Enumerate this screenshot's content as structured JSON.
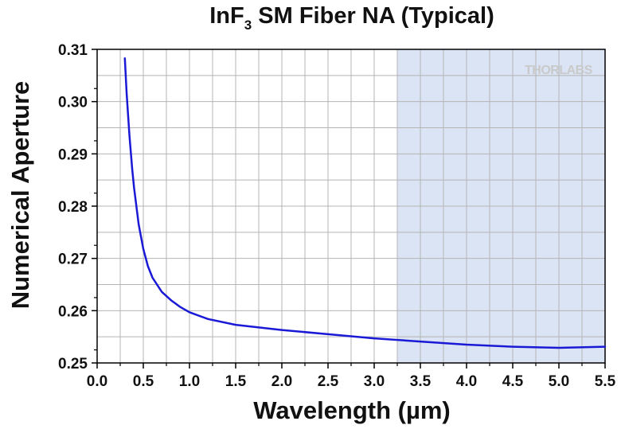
{
  "title": {
    "main": "InF",
    "sub": "3",
    "rest": " SM Fiber NA (Typical)"
  },
  "watermark": "THORLABS",
  "chart_data": {
    "type": "line",
    "xlabel": "Wavelength (µm)",
    "ylabel": "Numerical Aperture",
    "xlim": [
      0.0,
      5.5
    ],
    "ylim": [
      0.25,
      0.31
    ],
    "xticks": [
      "0.0",
      "0.5",
      "1.0",
      "1.5",
      "2.0",
      "2.5",
      "3.0",
      "3.5",
      "4.0",
      "4.5",
      "5.0",
      "5.5"
    ],
    "yticks": [
      "0.25",
      "0.26",
      "0.27",
      "0.28",
      "0.29",
      "0.30",
      "0.31"
    ],
    "grid": true,
    "highlight_region": {
      "x_start": 3.25,
      "x_end": 5.5,
      "color": "#dbe4f4"
    },
    "series": [
      {
        "color": "#1a1ad6",
        "x": [
          0.3,
          0.32,
          0.35,
          0.38,
          0.4,
          0.45,
          0.5,
          0.55,
          0.6,
          0.7,
          0.8,
          0.9,
          1.0,
          1.2,
          1.5,
          2.0,
          2.5,
          3.0,
          3.5,
          4.0,
          4.5,
          5.0,
          5.5
        ],
        "y": [
          0.3083,
          0.3015,
          0.2935,
          0.287,
          0.2835,
          0.2765,
          0.2718,
          0.2685,
          0.2663,
          0.2636,
          0.262,
          0.2607,
          0.2597,
          0.2584,
          0.2573,
          0.2563,
          0.2555,
          0.2547,
          0.2541,
          0.2535,
          0.2531,
          0.2529,
          0.2531
        ]
      }
    ]
  }
}
